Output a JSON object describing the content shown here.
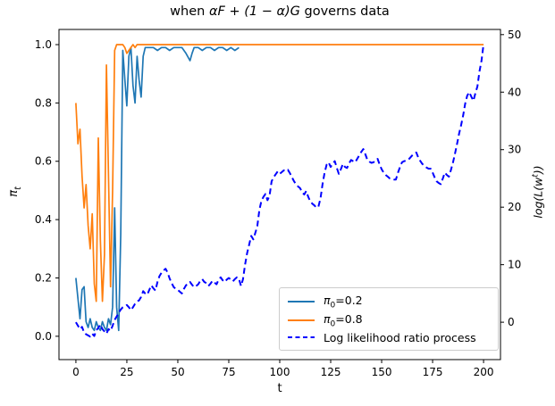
{
  "title": {
    "full": "when αF + (1 − α)G governs data",
    "prefix": "when ",
    "math": "αF + (1 − α)G",
    "suffix": " governs data"
  },
  "axes": {
    "xlabel": "t",
    "ylabel_left": {
      "symbol": "π",
      "sub": "t"
    },
    "ylabel_right": {
      "p1": "log(L(w",
      "sup": "t",
      "p2": "))"
    }
  },
  "legend": {
    "position": "lower right",
    "entries": [
      {
        "sym": "π",
        "sub": "0",
        "text": "=0.2"
      },
      {
        "sym": "π",
        "sub": "0",
        "text": "=0.8"
      },
      {
        "text": "Log likelihood ratio process"
      }
    ]
  },
  "chart_data": {
    "type": "line",
    "title": "when αF + (1 − α)G governs data",
    "xlabel": "t",
    "ylabel_left": "π_t",
    "ylabel_right": "log(L(w^t))",
    "xlim": [
      -8.3,
      208.3
    ],
    "ylim_left": [
      -0.08,
      1.052
    ],
    "ylim_right": [
      -6.5,
      50.9
    ],
    "xticks": [
      0,
      25,
      50,
      75,
      100,
      125,
      150,
      175,
      200
    ],
    "yticks_left": [
      "0.0",
      "0.2",
      "0.4",
      "0.6",
      "0.8",
      "1.0"
    ],
    "yticks_right": [
      0,
      10,
      20,
      30,
      40,
      50
    ],
    "grid": false,
    "series": [
      {
        "name": "π₀=0.2",
        "axis": "left",
        "color": "#1f77b4",
        "style": "solid",
        "points": [
          [
            0,
            0.2
          ],
          [
            1,
            0.13
          ],
          [
            2,
            0.06
          ],
          [
            3,
            0.16
          ],
          [
            4,
            0.17
          ],
          [
            5,
            0.05
          ],
          [
            6,
            0.03
          ],
          [
            7,
            0.06
          ],
          [
            8,
            0.03
          ],
          [
            9,
            0.02
          ],
          [
            10,
            0.05
          ],
          [
            11,
            0.03
          ],
          [
            12,
            0.02
          ],
          [
            13,
            0.05
          ],
          [
            14,
            0.03
          ],
          [
            15,
            0.02
          ],
          [
            16,
            0.06
          ],
          [
            17,
            0.04
          ],
          [
            18,
            0.1
          ],
          [
            19,
            0.44
          ],
          [
            20,
            0.1
          ],
          [
            21,
            0.02
          ],
          [
            22,
            0.35
          ],
          [
            23,
            0.98
          ],
          [
            24,
            0.88
          ],
          [
            25,
            0.79
          ],
          [
            26,
            0.96
          ],
          [
            27,
            0.99
          ],
          [
            28,
            0.86
          ],
          [
            29,
            0.8
          ],
          [
            30,
            0.96
          ],
          [
            31,
            0.88
          ],
          [
            32,
            0.82
          ],
          [
            33,
            0.96
          ],
          [
            34,
            0.99
          ],
          [
            36,
            0.99
          ],
          [
            38,
            0.99
          ],
          [
            40,
            0.98
          ],
          [
            42,
            0.99
          ],
          [
            44,
            0.99
          ],
          [
            46,
            0.98
          ],
          [
            48,
            0.99
          ],
          [
            50,
            0.99
          ],
          [
            52,
            0.99
          ],
          [
            54,
            0.97
          ],
          [
            56,
            0.945
          ],
          [
            57,
            0.97
          ],
          [
            58,
            0.99
          ],
          [
            60,
            0.99
          ],
          [
            62,
            0.98
          ],
          [
            64,
            0.99
          ],
          [
            66,
            0.99
          ],
          [
            68,
            0.98
          ],
          [
            70,
            0.99
          ],
          [
            72,
            0.99
          ],
          [
            74,
            0.98
          ],
          [
            76,
            0.99
          ],
          [
            78,
            0.98
          ],
          [
            80,
            0.99
          ]
        ]
      },
      {
        "name": "π₀=0.8",
        "axis": "left",
        "color": "#ff7f0e",
        "style": "solid",
        "points": [
          [
            0,
            0.8
          ],
          [
            1,
            0.66
          ],
          [
            2,
            0.71
          ],
          [
            3,
            0.55
          ],
          [
            4,
            0.44
          ],
          [
            5,
            0.52
          ],
          [
            6,
            0.38
          ],
          [
            7,
            0.3
          ],
          [
            8,
            0.42
          ],
          [
            9,
            0.18
          ],
          [
            10,
            0.12
          ],
          [
            11,
            0.68
          ],
          [
            12,
            0.33
          ],
          [
            13,
            0.12
          ],
          [
            14,
            0.28
          ],
          [
            15,
            0.93
          ],
          [
            16,
            0.55
          ],
          [
            17,
            0.17
          ],
          [
            18,
            0.5
          ],
          [
            19,
            0.98
          ],
          [
            20,
            1.0
          ],
          [
            23,
            1.0
          ],
          [
            24,
            0.99
          ],
          [
            25,
            0.97
          ],
          [
            26,
            0.98
          ],
          [
            27,
            0.99
          ],
          [
            28,
            1.0
          ],
          [
            29,
            0.99
          ],
          [
            30,
            1.0
          ],
          [
            200,
            1.0
          ]
        ]
      },
      {
        "name": "Log likelihood ratio process",
        "axis": "right",
        "color": "#0000ff",
        "style": "dashed",
        "points": [
          [
            0,
            0
          ],
          [
            1,
            -0.6
          ],
          [
            2,
            -1.2
          ],
          [
            3,
            -0.8
          ],
          [
            4,
            -1.8
          ],
          [
            5,
            -2.1
          ],
          [
            6,
            -2.3
          ],
          [
            7,
            -2.5
          ],
          [
            8,
            -2.0
          ],
          [
            9,
            -2.4
          ],
          [
            10,
            -1.4
          ],
          [
            11,
            -1.0
          ],
          [
            12,
            -0.4
          ],
          [
            13,
            -1.2
          ],
          [
            14,
            -1.6
          ],
          [
            15,
            -2.0
          ],
          [
            16,
            -1.2
          ],
          [
            17,
            -1.5
          ],
          [
            18,
            -0.6
          ],
          [
            19,
            0.4
          ],
          [
            20,
            1.0
          ],
          [
            21,
            1.6
          ],
          [
            22,
            2.2
          ],
          [
            23,
            2.6
          ],
          [
            24,
            2.8
          ],
          [
            25,
            3.0
          ],
          [
            26,
            2.6
          ],
          [
            27,
            2.1
          ],
          [
            28,
            2.6
          ],
          [
            29,
            3.2
          ],
          [
            30,
            3.6
          ],
          [
            31,
            3.8
          ],
          [
            32,
            4.4
          ],
          [
            33,
            5.4
          ],
          [
            34,
            5.0
          ],
          [
            35,
            4.8
          ],
          [
            36,
            5.6
          ],
          [
            37,
            6.4
          ],
          [
            38,
            5.9
          ],
          [
            39,
            5.5
          ],
          [
            40,
            7.0
          ],
          [
            41,
            8.0
          ],
          [
            42,
            8.6
          ],
          [
            43,
            9.0
          ],
          [
            44,
            9.3
          ],
          [
            45,
            8.6
          ],
          [
            46,
            7.6
          ],
          [
            47,
            6.8
          ],
          [
            48,
            6.1
          ],
          [
            49,
            5.8
          ],
          [
            50,
            5.6
          ],
          [
            51,
            5.3
          ],
          [
            52,
            5.0
          ],
          [
            53,
            5.8
          ],
          [
            54,
            6.4
          ],
          [
            55,
            6.8
          ],
          [
            56,
            7.0
          ],
          [
            57,
            6.5
          ],
          [
            58,
            6.1
          ],
          [
            59,
            6.3
          ],
          [
            60,
            6.6
          ],
          [
            61,
            7.2
          ],
          [
            62,
            7.5
          ],
          [
            63,
            7.0
          ],
          [
            64,
            6.8
          ],
          [
            65,
            6.3
          ],
          [
            66,
            6.7
          ],
          [
            67,
            7.2
          ],
          [
            68,
            6.9
          ],
          [
            69,
            6.6
          ],
          [
            70,
            7.4
          ],
          [
            71,
            7.8
          ],
          [
            72,
            7.3
          ],
          [
            73,
            7.0
          ],
          [
            74,
            7.4
          ],
          [
            75,
            7.7
          ],
          [
            76,
            7.4
          ],
          [
            77,
            7.1
          ],
          [
            78,
            7.5
          ],
          [
            79,
            7.8
          ],
          [
            80,
            7.5
          ],
          [
            81,
            6.3
          ],
          [
            82,
            7.5
          ],
          [
            83,
            10.0
          ],
          [
            84,
            12.0
          ],
          [
            85,
            13.5
          ],
          [
            86,
            15.0
          ],
          [
            87,
            14.4
          ],
          [
            88,
            15.5
          ],
          [
            89,
            16.7
          ],
          [
            90,
            19.5
          ],
          [
            91,
            21.1
          ],
          [
            92,
            21.8
          ],
          [
            93,
            22.3
          ],
          [
            94,
            21.2
          ],
          [
            95,
            22.0
          ],
          [
            96,
            24.5
          ],
          [
            97,
            25.2
          ],
          [
            98,
            25.7
          ],
          [
            99,
            26.2
          ],
          [
            100,
            25.8
          ],
          [
            101,
            26.1
          ],
          [
            102,
            26.4
          ],
          [
            103,
            26.3
          ],
          [
            104,
            26.5
          ],
          [
            105,
            25.9
          ],
          [
            106,
            25.2
          ],
          [
            107,
            24.5
          ],
          [
            108,
            24.0
          ],
          [
            109,
            23.6
          ],
          [
            110,
            23.3
          ],
          [
            111,
            22.6
          ],
          [
            112,
            22.2
          ],
          [
            113,
            22.8
          ],
          [
            114,
            21.8
          ],
          [
            115,
            21.0
          ],
          [
            116,
            20.6
          ],
          [
            117,
            20.3
          ],
          [
            118,
            19.9
          ],
          [
            119,
            20.1
          ],
          [
            120,
            21.5
          ],
          [
            121,
            24.0
          ],
          [
            122,
            26.0
          ],
          [
            123,
            27.4
          ],
          [
            124,
            27.8
          ],
          [
            125,
            27.0
          ],
          [
            126,
            27.6
          ],
          [
            127,
            28.0
          ],
          [
            128,
            26.8
          ],
          [
            129,
            25.8
          ],
          [
            130,
            26.6
          ],
          [
            131,
            27.5
          ],
          [
            132,
            27.0
          ],
          [
            133,
            26.8
          ],
          [
            134,
            27.6
          ],
          [
            135,
            28.2
          ],
          [
            136,
            28.0
          ],
          [
            137,
            27.8
          ],
          [
            138,
            28.4
          ],
          [
            139,
            29.0
          ],
          [
            140,
            29.6
          ],
          [
            141,
            30.1
          ],
          [
            142,
            29.2
          ],
          [
            143,
            28.2
          ],
          [
            144,
            27.9
          ],
          [
            145,
            27.7
          ],
          [
            146,
            27.8
          ],
          [
            147,
            28.1
          ],
          [
            148,
            28.4
          ],
          [
            149,
            27.4
          ],
          [
            150,
            26.6
          ],
          [
            151,
            26.0
          ],
          [
            152,
            25.6
          ],
          [
            153,
            25.3
          ],
          [
            154,
            25.0
          ],
          [
            155,
            24.9
          ],
          [
            156,
            24.8
          ],
          [
            157,
            24.8
          ],
          [
            158,
            26.0
          ],
          [
            159,
            27.0
          ],
          [
            160,
            27.8
          ],
          [
            161,
            28.0
          ],
          [
            162,
            28.1
          ],
          [
            163,
            28.2
          ],
          [
            164,
            28.6
          ],
          [
            165,
            29.0
          ],
          [
            166,
            29.3
          ],
          [
            167,
            29.5
          ],
          [
            168,
            28.6
          ],
          [
            169,
            28.0
          ],
          [
            170,
            27.5
          ],
          [
            171,
            27.2
          ],
          [
            172,
            26.9
          ],
          [
            173,
            26.7
          ],
          [
            174,
            26.7
          ],
          [
            175,
            26.0
          ],
          [
            176,
            25.2
          ],
          [
            177,
            24.5
          ],
          [
            178,
            24.2
          ],
          [
            179,
            24.0
          ],
          [
            180,
            25.0
          ],
          [
            181,
            26.0
          ],
          [
            182,
            25.6
          ],
          [
            183,
            25.3
          ],
          [
            184,
            26.5
          ],
          [
            185,
            27.8
          ],
          [
            186,
            29.3
          ],
          [
            187,
            31.0
          ],
          [
            188,
            32.8
          ],
          [
            189,
            34.3
          ],
          [
            190,
            36.0
          ],
          [
            191,
            38.0
          ],
          [
            192,
            39.4
          ],
          [
            193,
            40.0
          ],
          [
            194,
            39.2
          ],
          [
            195,
            38.5
          ],
          [
            196,
            39.8
          ],
          [
            197,
            41.0
          ],
          [
            198,
            43.6
          ],
          [
            199,
            45.5
          ],
          [
            200,
            48.4
          ]
        ]
      }
    ]
  }
}
